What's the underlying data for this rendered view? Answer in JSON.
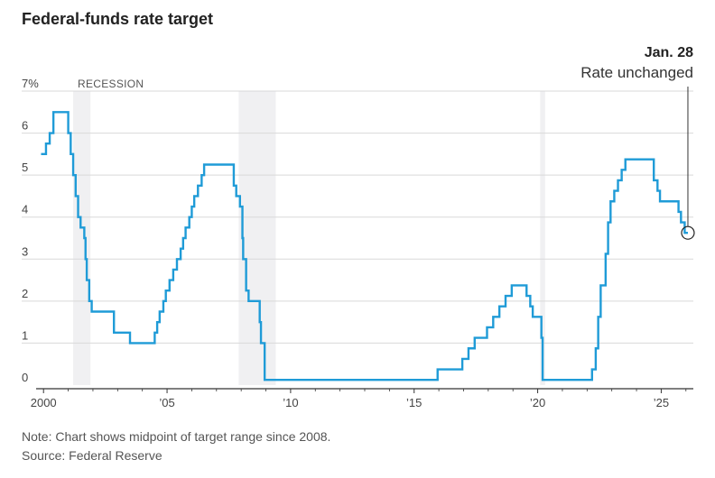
{
  "title": "Federal-funds rate target",
  "annotation": {
    "date": "Jan. 28",
    "text": "Rate unchanged"
  },
  "note": "Note: Chart shows midpoint of target range since 2008.",
  "source": "Source: Federal Reserve",
  "colors": {
    "line": "#1f9bd7",
    "recession": "#f0f0f2",
    "grid": "#d9d9d9",
    "axis": "#333333"
  },
  "chart_data": {
    "type": "line",
    "title": "Federal-funds rate target",
    "xlabel": "",
    "ylabel": "",
    "xlim": [
      1999.7,
      2026.3
    ],
    "ylim": [
      0,
      7
    ],
    "y_ticks": [
      {
        "value": 7,
        "label": "7%"
      },
      {
        "value": 6,
        "label": "6"
      },
      {
        "value": 5,
        "label": "5"
      },
      {
        "value": 4,
        "label": "4"
      },
      {
        "value": 3,
        "label": "3"
      },
      {
        "value": 2,
        "label": "2"
      },
      {
        "value": 1,
        "label": "1"
      },
      {
        "value": 0,
        "label": "0"
      }
    ],
    "x_ticks": [
      {
        "value": 2000,
        "label": "2000"
      },
      {
        "value": 2005,
        "label": "’05"
      },
      {
        "value": 2010,
        "label": "’10"
      },
      {
        "value": 2015,
        "label": "’15"
      },
      {
        "value": 2020,
        "label": "’20"
      },
      {
        "value": 2025,
        "label": "’25"
      }
    ],
    "recession_label": "RECESSION",
    "recessions": [
      [
        2001.2,
        2001.9
      ],
      [
        2007.9,
        2009.4
      ],
      [
        2020.1,
        2020.3
      ]
    ],
    "grid": true,
    "series": [
      {
        "name": "",
        "step": true,
        "points": [
          [
            1999.9,
            5.5
          ],
          [
            2000.1,
            5.75
          ],
          [
            2000.25,
            6.0
          ],
          [
            2000.4,
            6.5
          ],
          [
            2001.0,
            6.0
          ],
          [
            2001.1,
            5.5
          ],
          [
            2001.2,
            5.0
          ],
          [
            2001.3,
            4.5
          ],
          [
            2001.4,
            4.0
          ],
          [
            2001.5,
            3.75
          ],
          [
            2001.65,
            3.5
          ],
          [
            2001.7,
            3.0
          ],
          [
            2001.75,
            2.5
          ],
          [
            2001.85,
            2.0
          ],
          [
            2001.95,
            1.75
          ],
          [
            2002.85,
            1.25
          ],
          [
            2003.5,
            1.0
          ],
          [
            2004.5,
            1.25
          ],
          [
            2004.6,
            1.5
          ],
          [
            2004.7,
            1.75
          ],
          [
            2004.85,
            2.0
          ],
          [
            2004.95,
            2.25
          ],
          [
            2005.1,
            2.5
          ],
          [
            2005.25,
            2.75
          ],
          [
            2005.4,
            3.0
          ],
          [
            2005.55,
            3.25
          ],
          [
            2005.65,
            3.5
          ],
          [
            2005.75,
            3.75
          ],
          [
            2005.9,
            4.0
          ],
          [
            2006.0,
            4.25
          ],
          [
            2006.1,
            4.5
          ],
          [
            2006.25,
            4.75
          ],
          [
            2006.4,
            5.0
          ],
          [
            2006.5,
            5.25
          ],
          [
            2007.7,
            4.75
          ],
          [
            2007.8,
            4.5
          ],
          [
            2007.95,
            4.25
          ],
          [
            2008.05,
            3.5
          ],
          [
            2008.08,
            3.0
          ],
          [
            2008.2,
            2.25
          ],
          [
            2008.3,
            2.0
          ],
          [
            2008.75,
            1.5
          ],
          [
            2008.8,
            1.0
          ],
          [
            2008.95,
            0.125
          ],
          [
            2015.95,
            0.375
          ],
          [
            2016.95,
            0.625
          ],
          [
            2017.2,
            0.875
          ],
          [
            2017.45,
            1.125
          ],
          [
            2017.95,
            1.375
          ],
          [
            2018.2,
            1.625
          ],
          [
            2018.45,
            1.875
          ],
          [
            2018.7,
            2.125
          ],
          [
            2018.95,
            2.375
          ],
          [
            2019.55,
            2.125
          ],
          [
            2019.7,
            1.875
          ],
          [
            2019.8,
            1.625
          ],
          [
            2020.15,
            1.125
          ],
          [
            2020.2,
            0.125
          ],
          [
            2022.2,
            0.375
          ],
          [
            2022.35,
            0.875
          ],
          [
            2022.45,
            1.625
          ],
          [
            2022.55,
            2.375
          ],
          [
            2022.75,
            3.125
          ],
          [
            2022.85,
            3.875
          ],
          [
            2022.95,
            4.375
          ],
          [
            2023.1,
            4.625
          ],
          [
            2023.25,
            4.875
          ],
          [
            2023.4,
            5.125
          ],
          [
            2023.55,
            5.375
          ],
          [
            2024.7,
            4.875
          ],
          [
            2024.85,
            4.625
          ],
          [
            2024.95,
            4.375
          ],
          [
            2025.7,
            4.125
          ],
          [
            2025.8,
            3.875
          ],
          [
            2025.95,
            3.625
          ],
          [
            2026.08,
            3.625
          ]
        ]
      }
    ]
  }
}
